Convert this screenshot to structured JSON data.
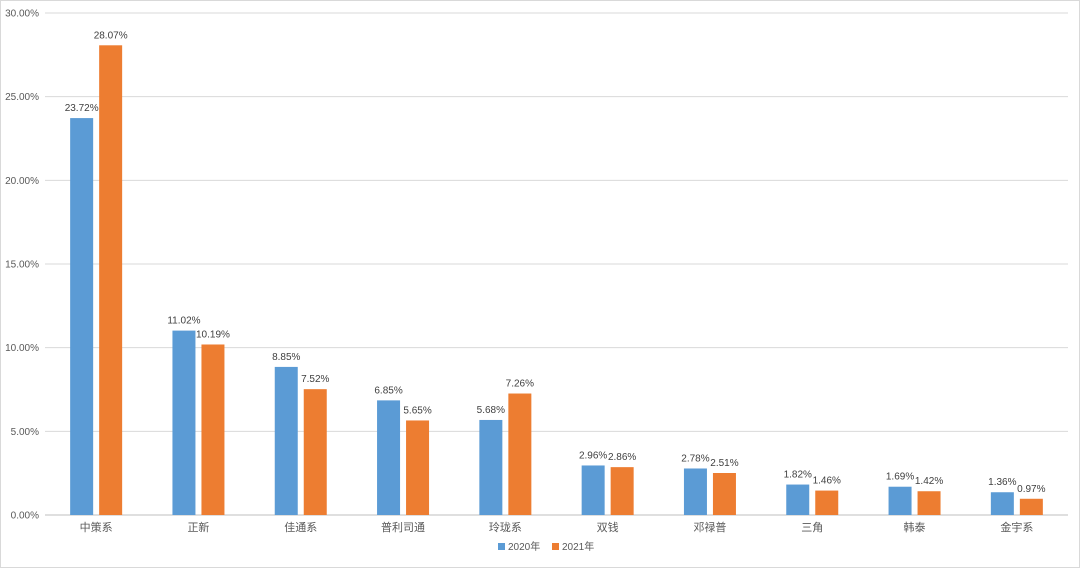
{
  "chart_data": {
    "type": "bar",
    "title": "",
    "xlabel": "",
    "ylabel": "",
    "ylim": [
      0,
      30
    ],
    "y_ticks": [
      "0.00%",
      "5.00%",
      "10.00%",
      "15.00%",
      "20.00%",
      "25.00%",
      "30.00%"
    ],
    "grid": true,
    "legend_position": "bottom",
    "categories": [
      "中策系",
      "正新",
      "佳通系",
      "普利司通",
      "玲珑系",
      "双钱",
      "邓禄普",
      "三角",
      "韩泰",
      "金宇系"
    ],
    "series": [
      {
        "name": "2020年",
        "color": "#5b9bd5",
        "values": [
          23.72,
          11.02,
          8.85,
          6.85,
          5.68,
          2.96,
          2.78,
          1.82,
          1.69,
          1.36
        ],
        "labels": [
          "23.72%",
          "11.02%",
          "8.85%",
          "6.85%",
          "5.68%",
          "2.96%",
          "2.78%",
          "1.82%",
          "1.69%",
          "1.36%"
        ]
      },
      {
        "name": "2021年",
        "color": "#ed7d31",
        "values": [
          28.07,
          10.19,
          7.52,
          5.65,
          7.26,
          2.86,
          2.51,
          1.46,
          1.42,
          0.97
        ],
        "labels": [
          "28.07%",
          "10.19%",
          "7.52%",
          "5.65%",
          "7.26%",
          "2.86%",
          "2.51%",
          "1.46%",
          "1.42%",
          "0.97%"
        ]
      }
    ]
  }
}
